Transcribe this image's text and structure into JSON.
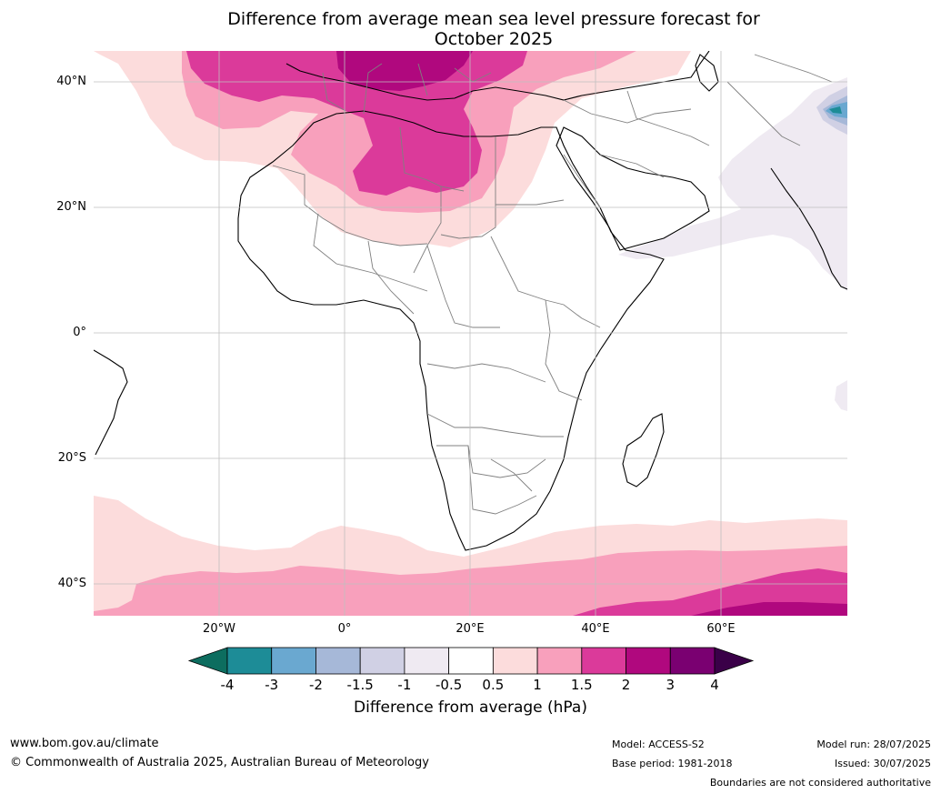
{
  "title": {
    "line1": "Difference from average mean sea level pressure forecast for",
    "line2": "October 2025"
  },
  "map": {
    "lat_labels": [
      "40°N",
      "20°N",
      "0°",
      "20°S",
      "40°S"
    ],
    "lon_labels": [
      "20°W",
      "0°",
      "20°E",
      "40°E",
      "60°E"
    ],
    "extent": {
      "lon": [
        -40,
        80
      ],
      "lat": [
        -45,
        45
      ]
    },
    "anomaly_regions": [
      {
        "name": "Mediterranean / North Africa",
        "category": "2 to 3 hPa",
        "color": "#b0087e"
      },
      {
        "name": "Southern Europe / Sahara",
        "category": "1.5 to 2 hPa",
        "color": "#db3a9a"
      },
      {
        "name": "Southern Ocean (south-east)",
        "category": "1.5 to 3 hPa",
        "color": "#db3a9a"
      },
      {
        "name": "Arabian Sea / Central Asia",
        "category": "-0.5 to -1 hPa",
        "color": "#efeaf2"
      },
      {
        "name": "Himalaya",
        "category": "-2 to -4 hPa",
        "color": "#6aa8d0"
      }
    ]
  },
  "colorbar": {
    "colors": [
      "#0d6d5f",
      "#1d8c97",
      "#6aa8d0",
      "#a6b8d8",
      "#d0d0e4",
      "#efeaf2",
      "#ffffff",
      "#fcdcdc",
      "#f8a0bc",
      "#db3a9a",
      "#b0087e",
      "#7a0071",
      "#3a0048"
    ],
    "ticks": [
      "-4",
      "-3",
      "-2",
      "-1.5",
      "-1",
      "-0.5",
      "0.5",
      "1",
      "1.5",
      "2",
      "3",
      "4"
    ],
    "label": "Difference from average (hPa)"
  },
  "footer": {
    "website": "www.bom.gov.au/climate",
    "copyright": "© Commonwealth of Australia 2025, Australian Bureau of Meteorology",
    "model": "Model: ACCESS-S2",
    "base_period": "Base period: 1981-2018",
    "model_run": "Model run: 28/07/2025",
    "issued": "Issued: 30/07/2025",
    "disclaimer": "Boundaries are not considered authoritative"
  }
}
